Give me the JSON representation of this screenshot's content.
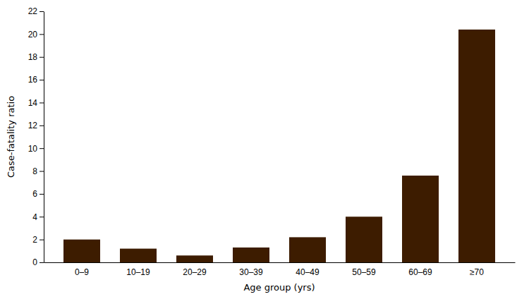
{
  "chart_data": {
    "type": "bar",
    "xlabel": "Age group (yrs)",
    "ylabel": "Case-fatality ratio",
    "categories": [
      "0–9",
      "10–19",
      "20–29",
      "30–39",
      "40–49",
      "50–59",
      "60–69",
      "≥70"
    ],
    "values": [
      2.0,
      1.2,
      0.6,
      1.3,
      2.2,
      4.0,
      7.6,
      20.4
    ],
    "color": "#3d1c00",
    "ylim": [
      0,
      22
    ],
    "yticks": [
      0,
      2,
      4,
      6,
      8,
      10,
      12,
      14,
      16,
      18,
      20,
      22
    ],
    "grid": false
  }
}
